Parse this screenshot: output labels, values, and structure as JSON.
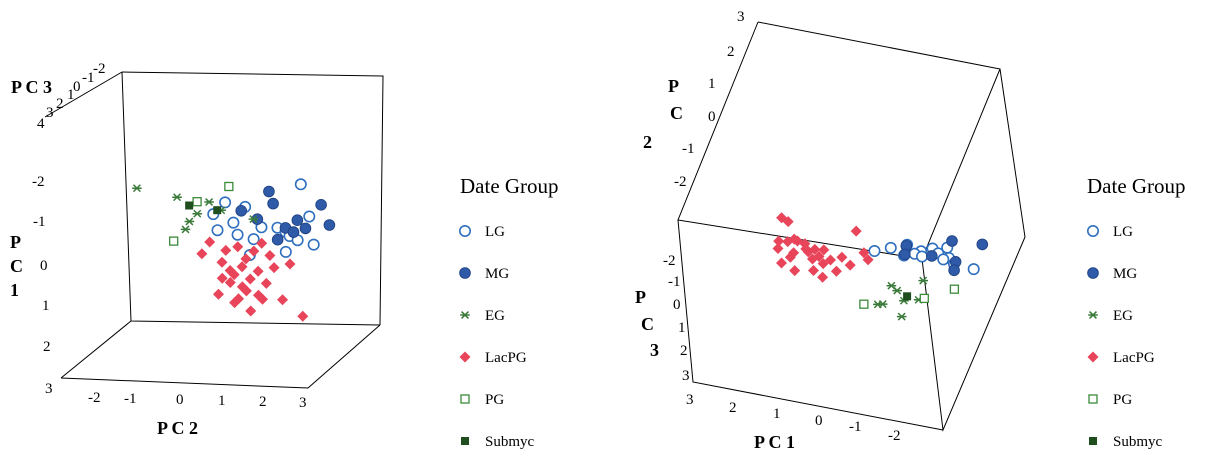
{
  "chart_data": [
    {
      "type": "scatter",
      "view": "left",
      "axes": {
        "pc3": {
          "label_lines": [
            "P C 3"
          ],
          "ticks": [
            "4",
            "3",
            "2",
            "1",
            "0",
            "-1",
            "-2"
          ]
        },
        "pc1": {
          "label_lines": [
            "P",
            "C",
            "1"
          ],
          "ticks": [
            "-2",
            "-1",
            "0",
            "1",
            "2",
            "3"
          ]
        },
        "pc2": {
          "label_lines": [
            "P C 2"
          ],
          "ticks": [
            "-2",
            "-1",
            "0",
            "1",
            "2",
            "3"
          ]
        }
      },
      "series": [
        {
          "name": "LG",
          "points": [
            [
              2.3,
              -2.0
            ],
            [
              1.7,
              -0.9
            ],
            [
              1.9,
              -0.8
            ],
            [
              2.0,
              -0.7
            ],
            [
              2.5,
              -1.2
            ],
            [
              2.6,
              -0.5
            ],
            [
              1.9,
              -0.3
            ],
            [
              0.6,
              -1.0
            ],
            [
              0.2,
              -0.8
            ],
            [
              0.7,
              -0.7
            ],
            [
              1.1,
              -0.6
            ],
            [
              0.4,
              -1.5
            ],
            [
              1.0,
              -0.2
            ],
            [
              1.3,
              -0.9
            ],
            [
              0.1,
              -1.2
            ],
            [
              0.9,
              -1.4
            ],
            [
              2.2,
              -0.6
            ]
          ]
        },
        {
          "name": "MG",
          "points": [
            [
              1.5,
              -1.8
            ],
            [
              1.6,
              -1.5
            ],
            [
              1.9,
              -0.9
            ],
            [
              2.2,
              -1.1
            ],
            [
              2.8,
              -1.5
            ],
            [
              3.0,
              -1.0
            ],
            [
              1.7,
              -0.6
            ],
            [
              2.1,
              -0.8
            ],
            [
              1.2,
              -1.1
            ],
            [
              0.8,
              -1.3
            ],
            [
              2.4,
              -0.9
            ]
          ]
        },
        {
          "name": "EG",
          "points": [
            [
              -1.8,
              -1.8
            ],
            [
              -0.8,
              -1.6
            ],
            [
              -0.5,
              -1.0
            ],
            [
              -0.3,
              -1.2
            ],
            [
              0.3,
              -1.3
            ],
            [
              1.1,
              -1.1
            ],
            [
              0.0,
              -1.5
            ],
            [
              -0.6,
              -0.8
            ]
          ]
        },
        {
          "name": "LacPG",
          "points": [
            [
              0.3,
              0.0
            ],
            [
              0.6,
              0.3
            ],
            [
              0.8,
              0.1
            ],
            [
              1.0,
              0.4
            ],
            [
              1.2,
              0.2
            ],
            [
              0.5,
              0.5
            ],
            [
              0.9,
              0.7
            ],
            [
              1.4,
              0.5
            ],
            [
              1.6,
              0.1
            ],
            [
              0.4,
              -0.3
            ],
            [
              0.7,
              -0.4
            ],
            [
              1.1,
              -0.3
            ],
            [
              1.5,
              -0.2
            ],
            [
              2.0,
              0.0
            ],
            [
              0.2,
              0.8
            ],
            [
              0.6,
              1.0
            ],
            [
              1.0,
              1.2
            ],
            [
              1.8,
              0.9
            ],
            [
              0.0,
              -0.5
            ],
            [
              -0.2,
              -0.2
            ],
            [
              1.3,
              0.9
            ],
            [
              0.8,
              0.6
            ],
            [
              1.2,
              0.8
            ],
            [
              0.5,
              0.2
            ],
            [
              2.3,
              1.3
            ],
            [
              0.9,
              -0.1
            ],
            [
              1.3,
              -0.5
            ],
            [
              0.3,
              0.4
            ],
            [
              0.7,
              0.9
            ]
          ]
        },
        {
          "name": "PG",
          "points": [
            [
              -0.3,
              -1.5
            ],
            [
              0.5,
              -1.9
            ],
            [
              -0.9,
              -0.5
            ]
          ]
        },
        {
          "name": "Submyc",
          "points": [
            [
              -0.5,
              -1.4
            ],
            [
              0.2,
              -1.3
            ]
          ]
        }
      ]
    },
    {
      "type": "scatter",
      "view": "right",
      "axes": {
        "pc2": {
          "label_lines": [
            "P",
            "C",
            "2"
          ],
          "ticks": [
            "3",
            "2",
            "1",
            "0",
            "-1",
            "-2"
          ]
        },
        "pc3": {
          "label_lines": [
            "P",
            "C",
            "3"
          ],
          "ticks": [
            "-2",
            "-1",
            "0",
            "1",
            "2",
            "3"
          ]
        },
        "pc1": {
          "label_lines": [
            "P C 1"
          ],
          "ticks": [
            "3",
            "2",
            "1",
            "0",
            "-1",
            "-2"
          ]
        }
      },
      "series": [
        {
          "name": "LG",
          "points": [
            [
              -2.4,
              -1.6
            ],
            [
              -2.1,
              -1.3
            ],
            [
              -2.3,
              -1.0
            ],
            [
              -1.9,
              -0.9
            ],
            [
              -2.6,
              -0.8
            ],
            [
              -2.8,
              -0.4
            ],
            [
              -1.8,
              -0.6
            ],
            [
              -1.2,
              -0.7
            ],
            [
              -1.5,
              -1.2
            ],
            [
              -2.0,
              -0.5
            ],
            [
              -2.5,
              -0.6
            ],
            [
              -3.3,
              -0.3
            ],
            [
              -1.6,
              -0.3
            ],
            [
              -0.9,
              -0.2
            ]
          ]
        },
        {
          "name": "MG",
          "points": [
            [
              -2.4,
              -2.2
            ],
            [
              -3.1,
              -2.4
            ],
            [
              -1.5,
              -1.1
            ],
            [
              -2.2,
              -0.7
            ],
            [
              -2.8,
              -0.6
            ],
            [
              -2.9,
              0.1
            ],
            [
              -1.6,
              -0.4
            ]
          ]
        },
        {
          "name": "EG",
          "points": [
            [
              -2.4,
              1.4
            ],
            [
              -1.8,
              2.3
            ],
            [
              -2.0,
              2.6
            ],
            [
              -2.6,
              3.0
            ],
            [
              -2.3,
              3.3
            ],
            [
              -1.9,
              3.9
            ],
            [
              -1.8,
              4.0
            ],
            [
              -2.5,
              4.6
            ]
          ]
        },
        {
          "name": "LacPG",
          "points": [
            [
              1.4,
              -1.2
            ],
            [
              1.6,
              -1.4
            ],
            [
              -0.2,
              -1.5
            ],
            [
              0.9,
              0.2
            ],
            [
              1.1,
              0.4
            ],
            [
              1.3,
              0.5
            ],
            [
              0.6,
              0.7
            ],
            [
              0.5,
              0.9
            ],
            [
              0.8,
              1.2
            ],
            [
              0.2,
              1.1
            ],
            [
              0.3,
              1.4
            ],
            [
              -0.1,
              1.2
            ],
            [
              0.0,
              1.6
            ],
            [
              0.7,
              0.3
            ],
            [
              1.0,
              0.1
            ],
            [
              0.4,
              0.6
            ],
            [
              -0.3,
              0.8
            ],
            [
              -0.6,
              1.3
            ],
            [
              -0.4,
              2.0
            ],
            [
              0.1,
              2.3
            ],
            [
              0.5,
              2.6
            ],
            [
              0.8,
              1.6
            ],
            [
              1.2,
              1.1
            ],
            [
              0.2,
              0.5
            ],
            [
              -0.7,
              0.1
            ],
            [
              0.9,
              2.2
            ],
            [
              -0.2,
              2.7
            ],
            [
              -0.9,
              0.6
            ]
          ]
        },
        {
          "name": "PG",
          "points": [
            [
              -3.2,
              1.6
            ],
            [
              -2.7,
              2.8
            ],
            [
              -1.5,
              4.2
            ]
          ]
        },
        {
          "name": "Submyc",
          "points": [
            [
              -2.3,
              2.9
            ]
          ]
        }
      ]
    }
  ],
  "legend": {
    "title": "Date Group",
    "items": [
      {
        "name": "LG",
        "marker": "open-circle",
        "color": "#2f6fbf"
      },
      {
        "name": "MG",
        "marker": "filled-circle",
        "color": "#2f5aa8"
      },
      {
        "name": "EG",
        "marker": "asterisk",
        "color": "#3a7a3a"
      },
      {
        "name": "LacPG",
        "marker": "filled-diamond",
        "color": "#e8445a"
      },
      {
        "name": "PG",
        "marker": "open-square",
        "color": "#3a8a3a"
      },
      {
        "name": "Submyc",
        "marker": "filled-square",
        "color": "#1e4d1e"
      }
    ]
  }
}
